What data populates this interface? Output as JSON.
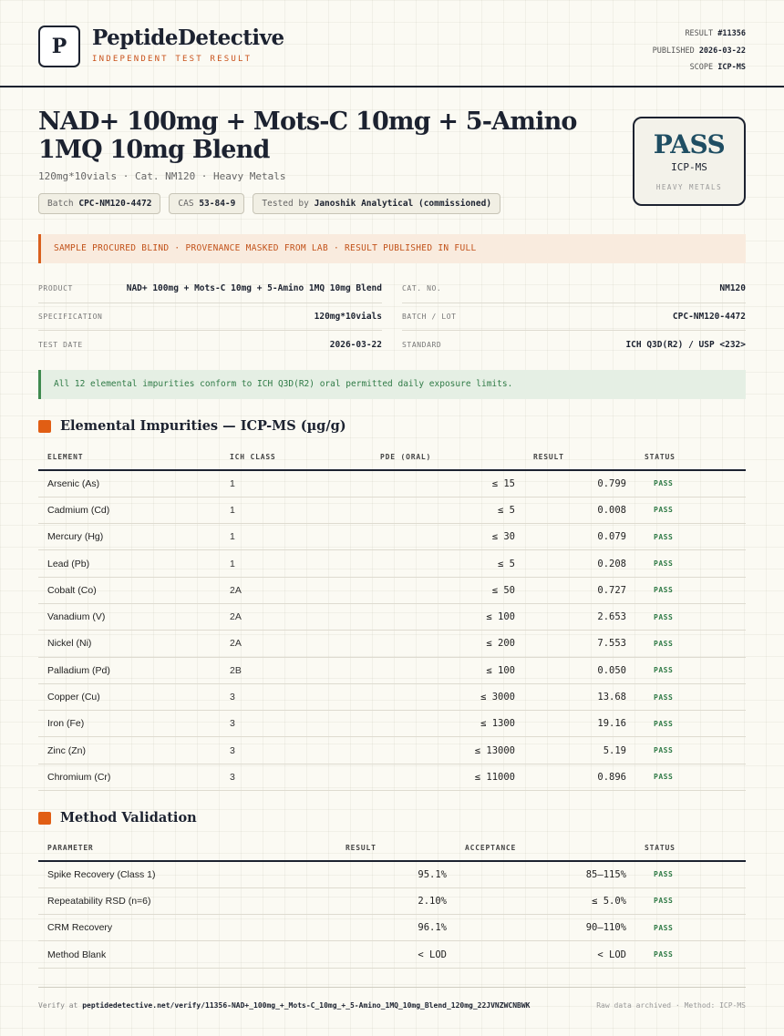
{
  "header": {
    "logo_letter": "P",
    "brand": "PeptideDetective",
    "brand_sub": "INDEPENDENT TEST RESULT",
    "result_label": "RESULT",
    "result_value": "#11356",
    "published_label": "PUBLISHED",
    "published_value": "2026-03-22",
    "scope_label": "SCOPE",
    "scope_value": "ICP-MS"
  },
  "title": "NAD+ 100mg + Mots-C 10mg + 5-Amino 1MQ 10mg Blend",
  "subtitle": "120mg*10vials · Cat. NM120 · Heavy Metals",
  "pills": {
    "batch_label": "Batch",
    "batch_value": "CPC-NM120-4472",
    "cas_label": "CAS",
    "cas_value": "53-84-9",
    "tested_label": "Tested by",
    "tested_value": "Janoshik Analytical (commissioned)"
  },
  "stamp": {
    "result": "PASS",
    "method": "ICP-MS",
    "scope": "HEAVY METALS"
  },
  "banner": "SAMPLE PROCURED BLIND · PROVENANCE MASKED FROM LAB · RESULT PUBLISHED IN FULL",
  "info_left": [
    {
      "label": "PRODUCT",
      "value": "NAD+ 100mg + Mots-C 10mg + 5-Amino 1MQ 10mg Blend"
    },
    {
      "label": "SPECIFICATION",
      "value": "120mg*10vials"
    },
    {
      "label": "TEST DATE",
      "value": "2026-03-22"
    }
  ],
  "info_right": [
    {
      "label": "CAT. NO.",
      "value": "NM120"
    },
    {
      "label": "BATCH / LOT",
      "value": "CPC-NM120-4472"
    },
    {
      "label": "STANDARD",
      "value": "ICH Q3D(R2) / USP <232>"
    }
  ],
  "conform": "All 12 elemental impurities conform to ICH Q3D(R2) oral permitted daily exposure limits.",
  "impurities": {
    "title": "Elemental Impurities — ICP-MS (µg/g)",
    "headers": [
      "ELEMENT",
      "ICH CLASS",
      "PDE (ORAL)",
      "RESULT",
      "STATUS"
    ],
    "rows": [
      [
        "Arsenic (As)",
        "1",
        "≤ 15",
        "0.799",
        "PASS"
      ],
      [
        "Cadmium (Cd)",
        "1",
        "≤ 5",
        "0.008",
        "PASS"
      ],
      [
        "Mercury (Hg)",
        "1",
        "≤ 30",
        "0.079",
        "PASS"
      ],
      [
        "Lead (Pb)",
        "1",
        "≤ 5",
        "0.208",
        "PASS"
      ],
      [
        "Cobalt (Co)",
        "2A",
        "≤ 50",
        "0.727",
        "PASS"
      ],
      [
        "Vanadium (V)",
        "2A",
        "≤ 100",
        "2.653",
        "PASS"
      ],
      [
        "Nickel (Ni)",
        "2A",
        "≤ 200",
        "7.553",
        "PASS"
      ],
      [
        "Palladium (Pd)",
        "2B",
        "≤ 100",
        "0.050",
        "PASS"
      ],
      [
        "Copper (Cu)",
        "3",
        "≤ 3000",
        "13.68",
        "PASS"
      ],
      [
        "Iron (Fe)",
        "3",
        "≤ 1300",
        "19.16",
        "PASS"
      ],
      [
        "Zinc (Zn)",
        "3",
        "≤ 13000",
        "5.19",
        "PASS"
      ],
      [
        "Chromium (Cr)",
        "3",
        "≤ 11000",
        "0.896",
        "PASS"
      ]
    ]
  },
  "validation": {
    "title": "Method Validation",
    "headers": [
      "PARAMETER",
      "RESULT",
      "ACCEPTANCE",
      "STATUS"
    ],
    "rows": [
      [
        "Spike Recovery (Class 1)",
        "95.1%",
        "85–115%",
        "PASS"
      ],
      [
        "Repeatability RSD (n=6)",
        "2.10%",
        "≤ 5.0%",
        "PASS"
      ],
      [
        "CRM Recovery",
        "96.1%",
        "90–110%",
        "PASS"
      ],
      [
        "Method Blank",
        "< LOD",
        "< LOD",
        "PASS"
      ]
    ]
  },
  "footer": {
    "verify_label": "Verify at",
    "verify_url": "peptidedetective.net/verify/11356-NAD+_100mg_+_Mots-C_10mg_+_5-Amino_1MQ_10mg_Blend_120mg_22JVNZWCNBWK",
    "right": "Raw data archived · Method: ICP-MS"
  }
}
